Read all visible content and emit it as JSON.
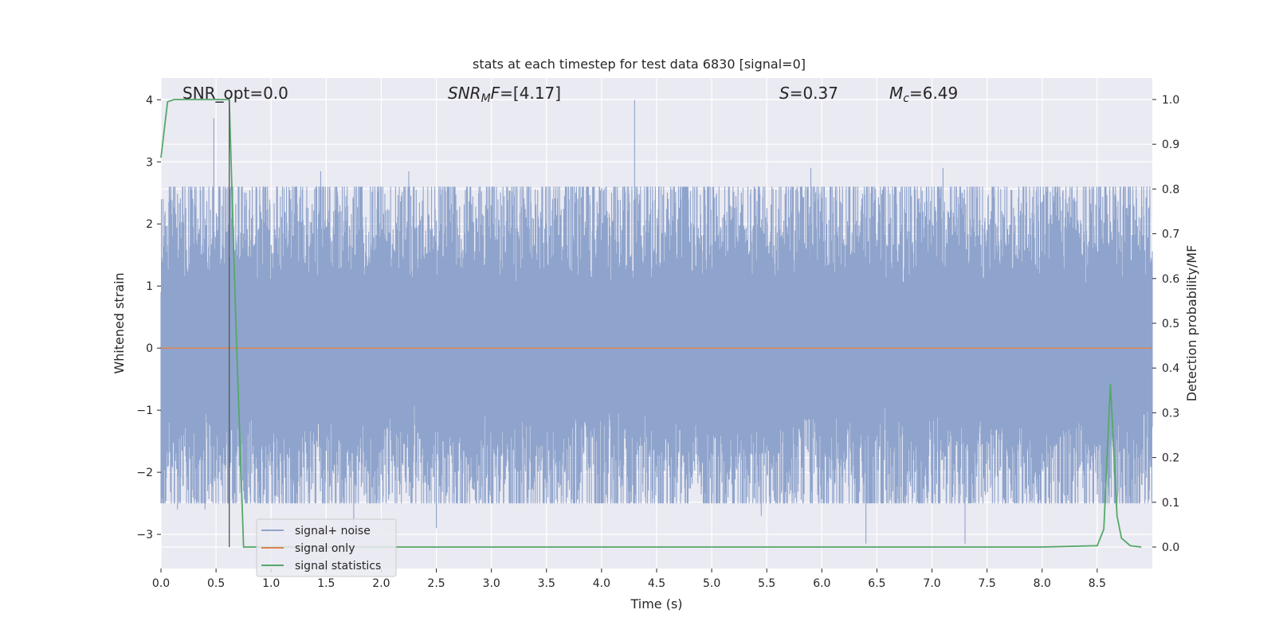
{
  "chart_data": {
    "type": "line",
    "title": "stats at each timestep for test data 6830 [signal=0]",
    "xlabel": "Time (s)",
    "ylabel_left": "Whitened strain",
    "ylabel_right": "Detection probability/MF",
    "xlim": [
      0.0,
      9.0
    ],
    "ylim_left": [
      -3.55,
      4.35
    ],
    "ylim_right": [
      -0.048,
      1.048
    ],
    "x_ticks": [
      0.0,
      0.5,
      1.0,
      1.5,
      2.0,
      2.5,
      3.0,
      3.5,
      4.0,
      4.5,
      5.0,
      5.5,
      6.0,
      6.5,
      7.0,
      7.5,
      8.0,
      8.5
    ],
    "x_tick_labels": [
      "0.0",
      "0.5",
      "1.0",
      "1.5",
      "2.0",
      "2.5",
      "3.0",
      "3.5",
      "4.0",
      "4.5",
      "5.0",
      "5.5",
      "6.0",
      "6.5",
      "7.0",
      "7.5",
      "8.0",
      "8.5"
    ],
    "y_left_ticks": [
      -3,
      -2,
      -1,
      0,
      1,
      2,
      3,
      4
    ],
    "y_left_tick_labels": [
      "−3",
      "−2",
      "−1",
      "0",
      "1",
      "2",
      "3",
      "4"
    ],
    "y_right_ticks": [
      0.0,
      0.1,
      0.2,
      0.3,
      0.4,
      0.5,
      0.6,
      0.7,
      0.8,
      0.9,
      1.0
    ],
    "y_right_tick_labels": [
      "0.0",
      "0.1",
      "0.2",
      "0.3",
      "0.4",
      "0.5",
      "0.6",
      "0.7",
      "0.8",
      "0.9",
      "1.0"
    ],
    "grid": true,
    "legend_position": "lower-left",
    "annotations": [
      {
        "text": "SNR_opt=0.0"
      },
      {
        "text": "SNRₘF=[4.17]",
        "parts": [
          {
            "t": "SNR",
            "italic": true
          },
          {
            "t": "M",
            "italic": true,
            "sub": true
          },
          {
            "t": "F",
            "italic": true
          },
          {
            "t": "=[4.17]"
          }
        ]
      },
      {
        "text": "S=0.37",
        "parts": [
          {
            "t": "S",
            "italic": true
          },
          {
            "t": "=0.37"
          }
        ]
      },
      {
        "text": "Mₔ=6.49",
        "parts": [
          {
            "t": "M",
            "italic": true
          },
          {
            "t": "c",
            "italic": true,
            "sub": true
          },
          {
            "t": "=6.49"
          }
        ]
      }
    ],
    "vline_x": 0.62,
    "series": [
      {
        "name": "signal+ noise",
        "axis": "left",
        "color": "#8fa4cc",
        "typical_amplitude": 1.8,
        "peaks": [
          {
            "x": 0.48,
            "y": 3.7
          },
          {
            "x": 4.3,
            "y": 4.0
          },
          {
            "x": 2.25,
            "y": 2.85
          },
          {
            "x": 1.45,
            "y": 2.85
          },
          {
            "x": 5.9,
            "y": 2.9
          },
          {
            "x": 7.1,
            "y": 2.9
          },
          {
            "x": 6.4,
            "y": -3.15
          },
          {
            "x": 7.3,
            "y": -3.15
          },
          {
            "x": 1.75,
            "y": -3.1
          },
          {
            "x": 0.15,
            "y": -2.6
          },
          {
            "x": 0.4,
            "y": -2.6
          },
          {
            "x": 5.45,
            "y": -2.7
          },
          {
            "x": 2.5,
            "y": -2.9
          }
        ]
      },
      {
        "name": "signal only",
        "axis": "left",
        "color": "#dd8452",
        "x": [
          0.0,
          9.0
        ],
        "y": [
          0.0,
          0.0
        ]
      },
      {
        "name": "signal statistics",
        "axis": "right",
        "color": "#55a868",
        "x": [
          0.0,
          0.06,
          0.12,
          0.5,
          0.6,
          0.62,
          0.68,
          0.75,
          1.0,
          2.0,
          3.0,
          4.0,
          5.0,
          6.0,
          7.0,
          8.0,
          8.5,
          8.56,
          8.62,
          8.68,
          8.72,
          8.8,
          8.9
        ],
        "y": [
          0.87,
          0.995,
          1.0,
          1.0,
          1.0,
          1.0,
          0.5,
          0.0,
          0.0,
          0.0,
          0.0,
          0.0,
          0.0,
          0.0,
          0.0,
          0.0,
          0.003,
          0.04,
          0.365,
          0.07,
          0.02,
          0.003,
          0.0
        ]
      }
    ]
  }
}
